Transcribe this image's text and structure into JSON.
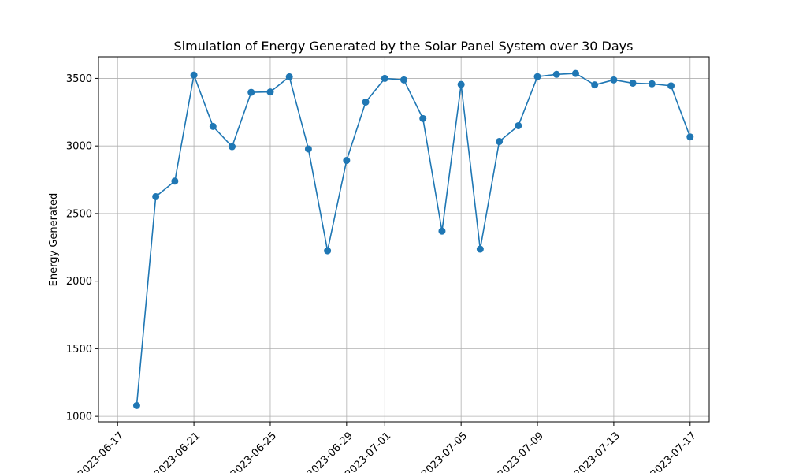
{
  "chart_data": {
    "type": "line",
    "title": "Simulation of Energy Generated by the Solar Panel System over 30 Days",
    "xlabel": "",
    "ylabel": "Energy Generated",
    "grid": true,
    "legend": "none",
    "x_ticks": [
      "2023-06-17",
      "2023-06-21",
      "2023-06-25",
      "2023-06-29",
      "2023-07-01",
      "2023-07-05",
      "2023-07-09",
      "2023-07-13",
      "2023-07-17"
    ],
    "y_ticks": [
      1000,
      1500,
      2000,
      2500,
      3000,
      3500
    ],
    "xlim": [
      "2023-06-16",
      "2023-07-18"
    ],
    "ylim": [
      960,
      3660
    ],
    "x": [
      "2023-06-18",
      "2023-06-19",
      "2023-06-20",
      "2023-06-21",
      "2023-06-22",
      "2023-06-23",
      "2023-06-24",
      "2023-06-25",
      "2023-06-26",
      "2023-06-27",
      "2023-06-28",
      "2023-06-29",
      "2023-06-30",
      "2023-07-01",
      "2023-07-02",
      "2023-07-03",
      "2023-07-04",
      "2023-07-05",
      "2023-07-06",
      "2023-07-07",
      "2023-07-08",
      "2023-07-09",
      "2023-07-10",
      "2023-07-11",
      "2023-07-12",
      "2023-07-13",
      "2023-07-14",
      "2023-07-15",
      "2023-07-16",
      "2023-07-17"
    ],
    "series": [
      {
        "values": [
          1080,
          2625,
          2740,
          3525,
          3145,
          2995,
          3397,
          3400,
          3512,
          2978,
          2225,
          2893,
          3325,
          3500,
          3489,
          3203,
          2370,
          3455,
          2237,
          3033,
          3150,
          3513,
          3530,
          3537,
          3452,
          3489,
          3465,
          3460,
          3445,
          3067
        ],
        "color": "#1f77b4"
      }
    ]
  }
}
